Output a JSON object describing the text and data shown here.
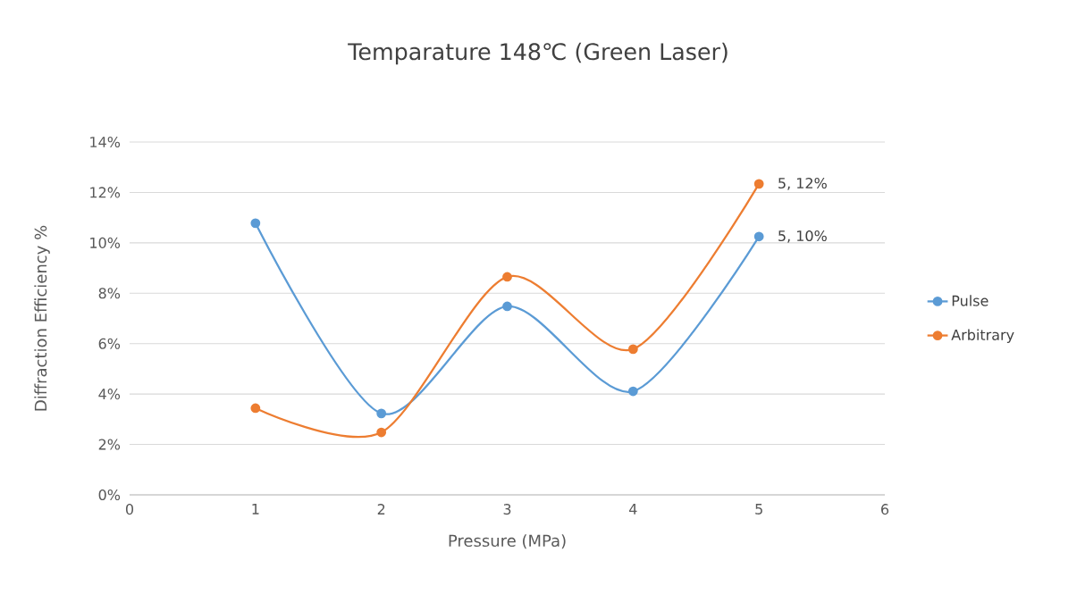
{
  "chart_data": {
    "type": "line",
    "title": "Temparature 148℃ (Green Laser)",
    "xlabel": "Pressure (MPa)",
    "ylabel": "Diffraction Efficiency %",
    "x": [
      1,
      2,
      3,
      4,
      5
    ],
    "series": [
      {
        "name": "Pulse",
        "color": "#5b9bd5",
        "values": [
          10.78,
          3.23,
          7.48,
          4.11,
          10.25
        ]
      },
      {
        "name": "Arbitrary",
        "color": "#ed7d31",
        "values": [
          3.44,
          2.48,
          8.65,
          5.78,
          12.34
        ]
      }
    ],
    "xlim": [
      0,
      6
    ],
    "xticks": [
      0,
      1,
      2,
      3,
      4,
      5,
      6
    ],
    "ylim": [
      0,
      14
    ],
    "yticks": [
      {
        "value": 0,
        "label": "0%"
      },
      {
        "value": 2,
        "label": "2%"
      },
      {
        "value": 4,
        "label": "4%"
      },
      {
        "value": 6,
        "label": "6%"
      },
      {
        "value": 8,
        "label": "8%"
      },
      {
        "value": 10,
        "label": "10%"
      },
      {
        "value": 12,
        "label": "12%"
      },
      {
        "value": 14,
        "label": "14%"
      }
    ],
    "grid": "y",
    "legend": "right",
    "marker": "circle",
    "annotations": [
      {
        "text": "5, 12%",
        "x": 5,
        "y": 12.34
      },
      {
        "text": "5, 10%",
        "x": 5,
        "y": 10.25
      }
    ]
  }
}
